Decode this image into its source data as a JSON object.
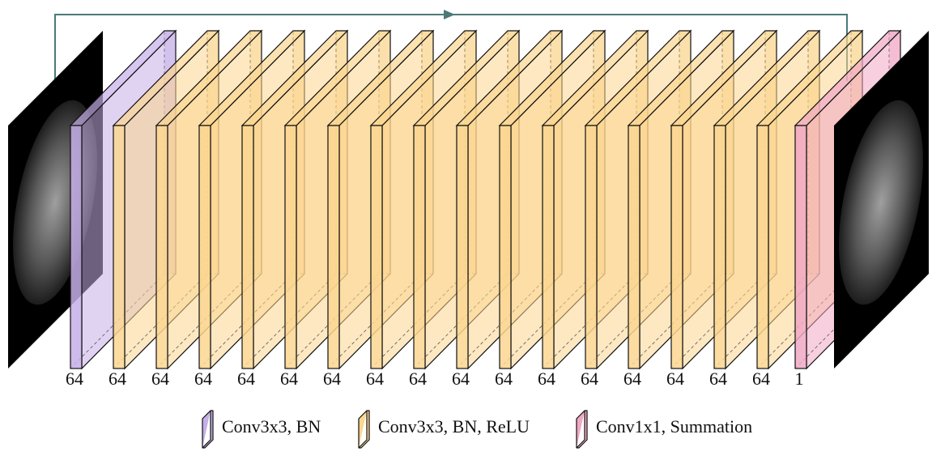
{
  "layers": {
    "labels": [
      64,
      64,
      64,
      64,
      64,
      64,
      64,
      64,
      64,
      64,
      64,
      64,
      64,
      64,
      64,
      64,
      64,
      1
    ]
  },
  "legend": {
    "items": [
      "Conv3x3, BN",
      "Conv3x3, BN, ReLU",
      "Conv1x1, Summation"
    ]
  }
}
